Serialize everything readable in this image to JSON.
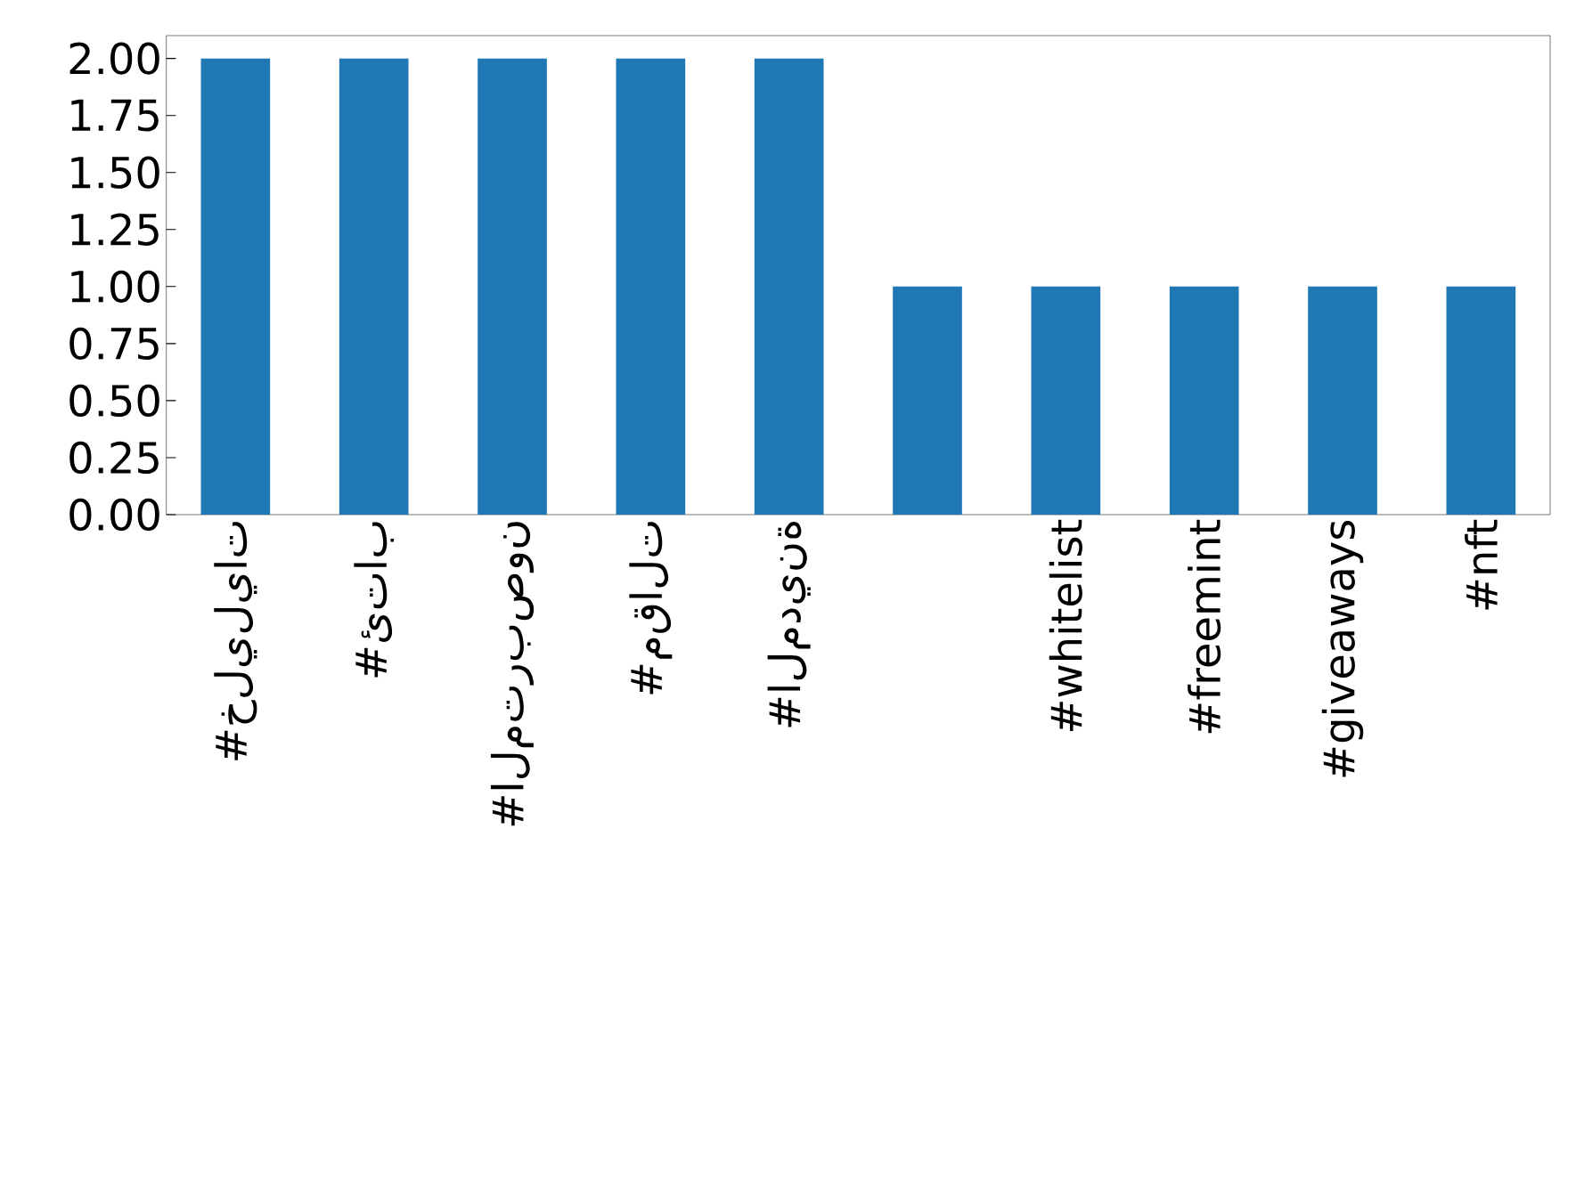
{
  "chart_data": {
    "type": "bar",
    "categories": [
      "#خليليات",
      "#ئتاب",
      "#المتربصون",
      "#مقالت",
      "#المدينة",
      null,
      "#whitelist",
      "#freemint",
      "#giveaways",
      "#nft"
    ],
    "values": [
      2,
      2,
      2,
      2,
      2,
      1,
      1,
      1,
      1,
      1
    ],
    "color": "#1f77b4",
    "ylim": [
      0,
      2.1
    ],
    "yticks": [
      {
        "value": 0,
        "label": "0.00"
      },
      {
        "value": 0.25,
        "label": "0.25"
      },
      {
        "value": 0.5,
        "label": "0.50"
      },
      {
        "value": 0.75,
        "label": "0.75"
      },
      {
        "value": 1,
        "label": "1.00"
      },
      {
        "value": 1.25,
        "label": "1.25"
      },
      {
        "value": 1.5,
        "label": "1.50"
      },
      {
        "value": 1.75,
        "label": "1.75"
      },
      {
        "value": 2,
        "label": "2.00"
      }
    ],
    "grid": false
  }
}
